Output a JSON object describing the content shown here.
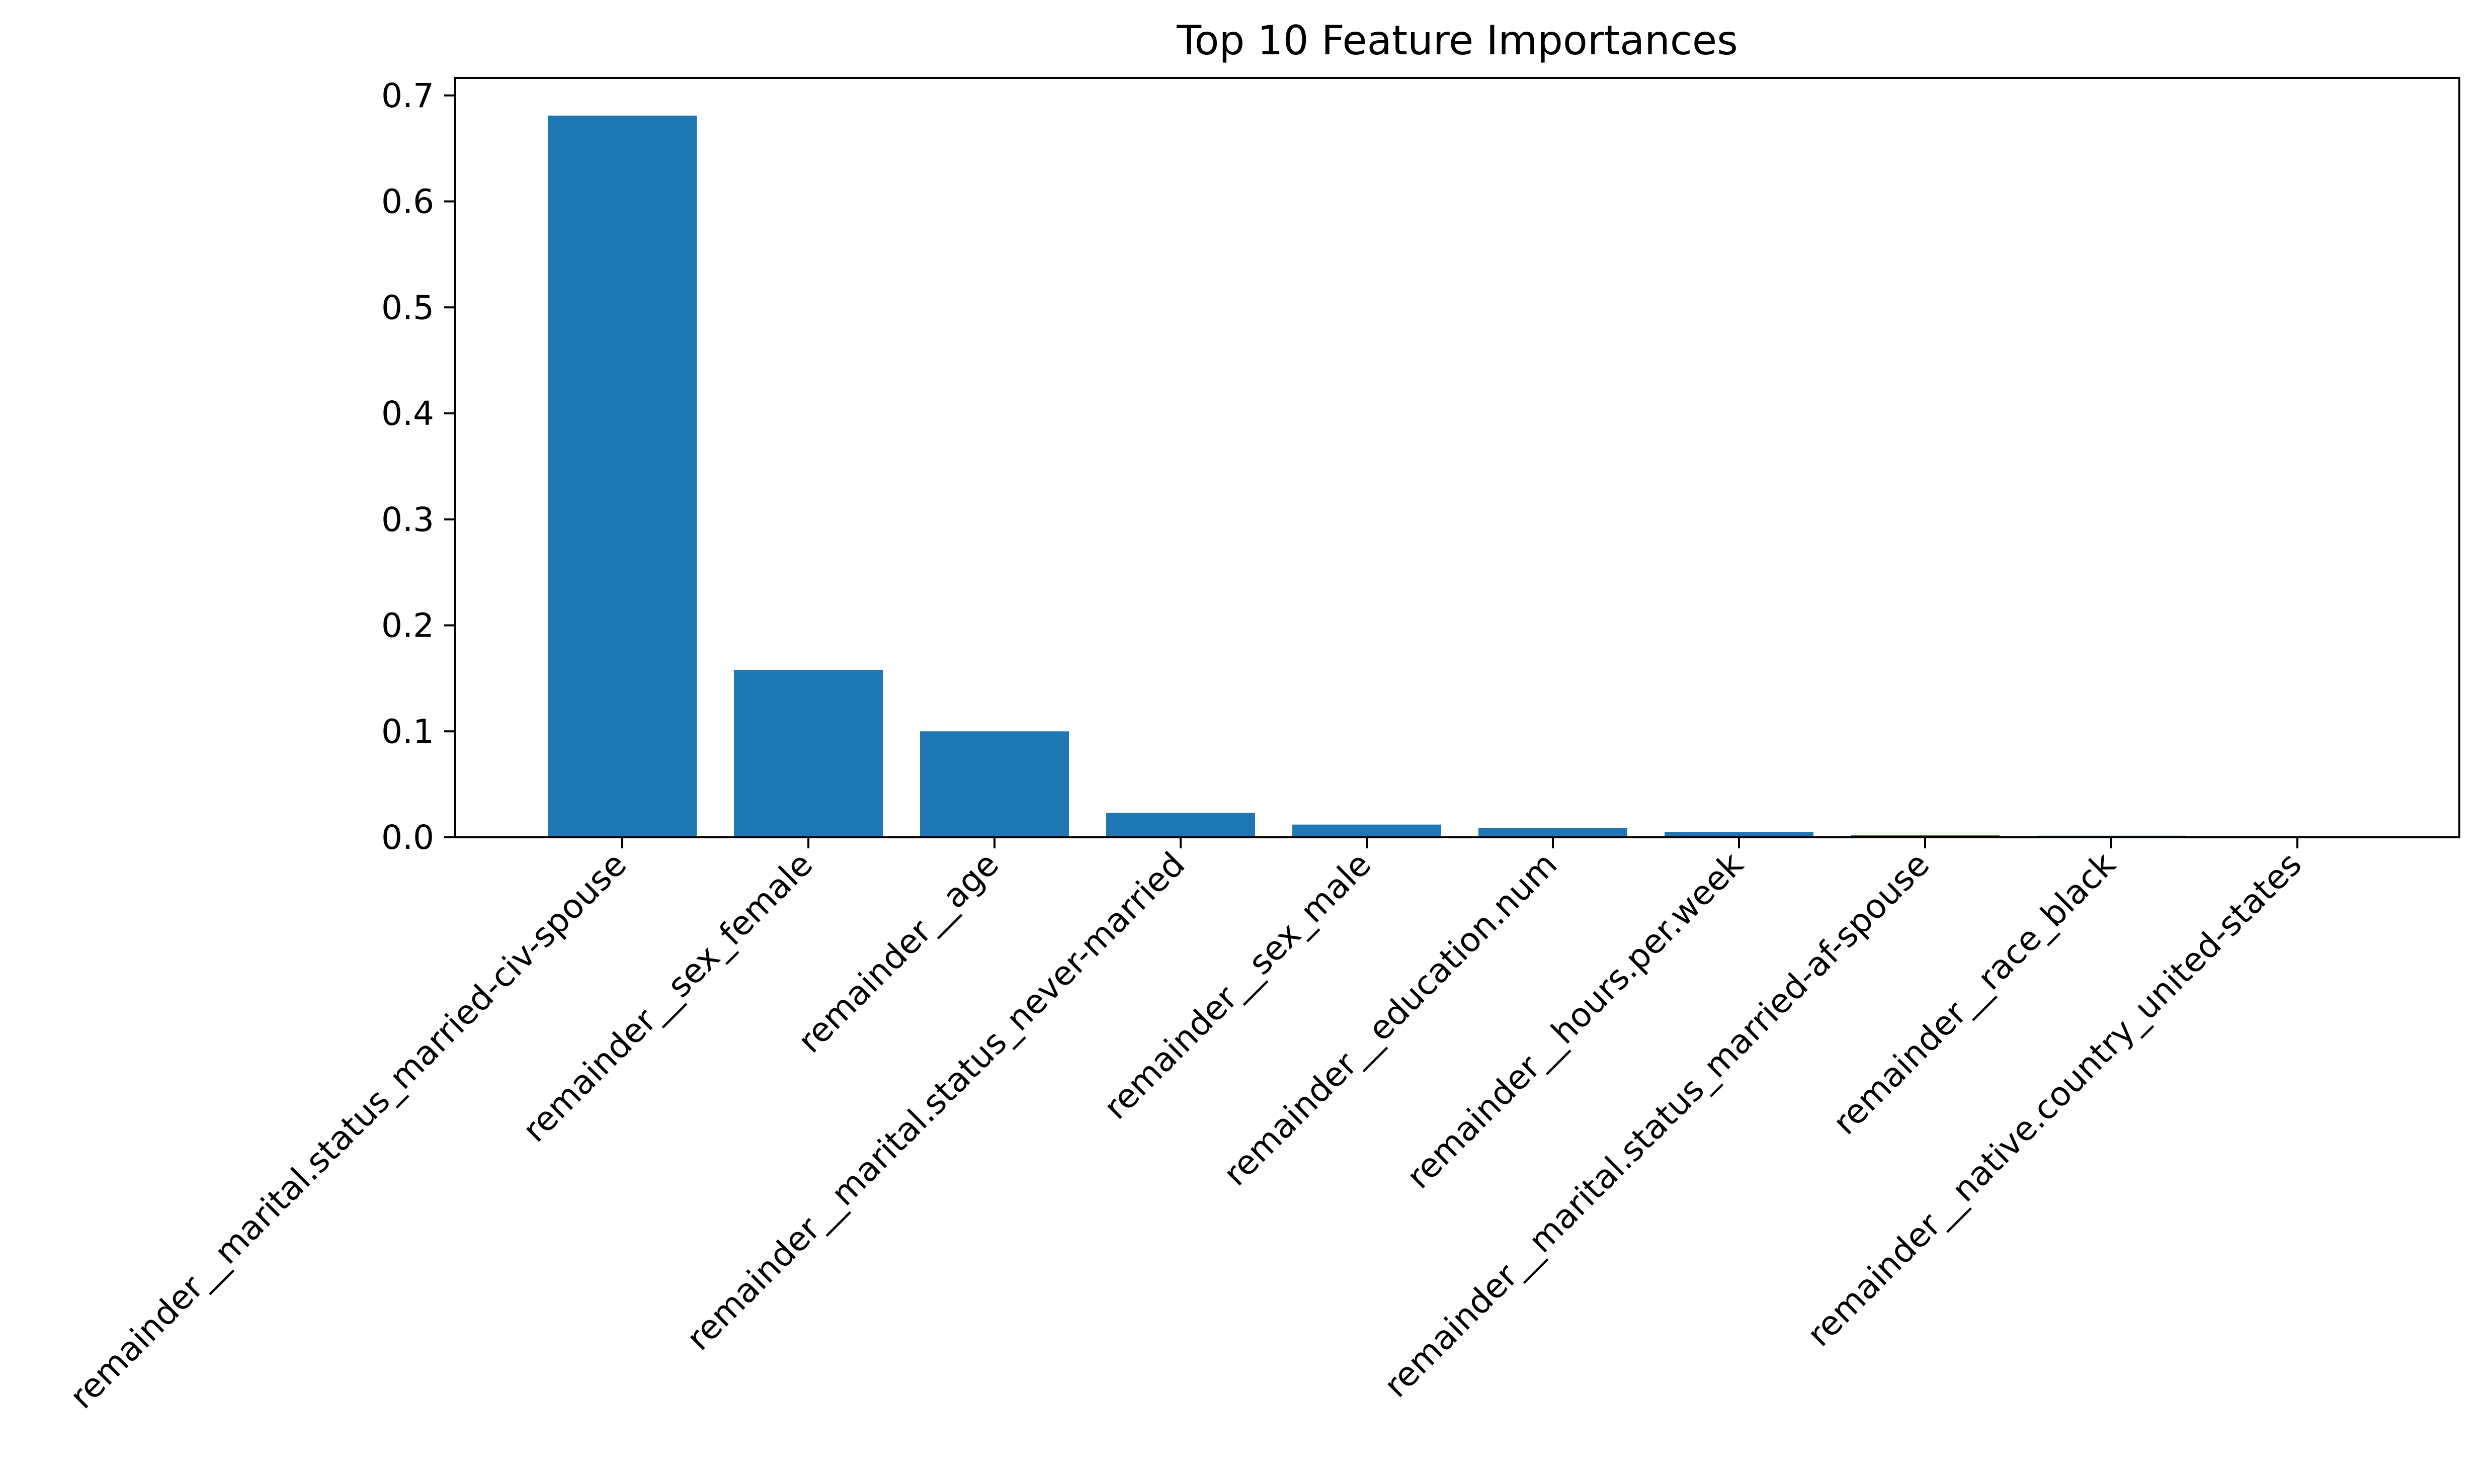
{
  "chart_data": {
    "type": "bar",
    "title": "Top 10 Feature Importances",
    "xlabel": "",
    "ylabel": "",
    "categories": [
      "remainder__marital.status_married-civ-spouse",
      "remainder__sex_female",
      "remainder__age",
      "remainder__marital.status_never-married",
      "remainder__sex_male",
      "remainder__education.num",
      "remainder__hours.per.week",
      "remainder__marital.status_married-af-spouse",
      "remainder__race_black",
      "remainder__native.country_united-states"
    ],
    "values": [
      0.681,
      0.158,
      0.1,
      0.023,
      0.012,
      0.009,
      0.005,
      0.002,
      0.0015,
      0.0005
    ],
    "ylim": [
      0,
      0.7165
    ],
    "yticks": [
      0.0,
      0.1,
      0.2,
      0.3,
      0.4,
      0.5,
      0.6,
      0.7
    ],
    "ytick_labels": [
      "0.0",
      "0.1",
      "0.2",
      "0.3",
      "0.4",
      "0.5",
      "0.6",
      "0.7"
    ],
    "bar_color": "#1f77b4",
    "grid": false,
    "legend": "none"
  }
}
